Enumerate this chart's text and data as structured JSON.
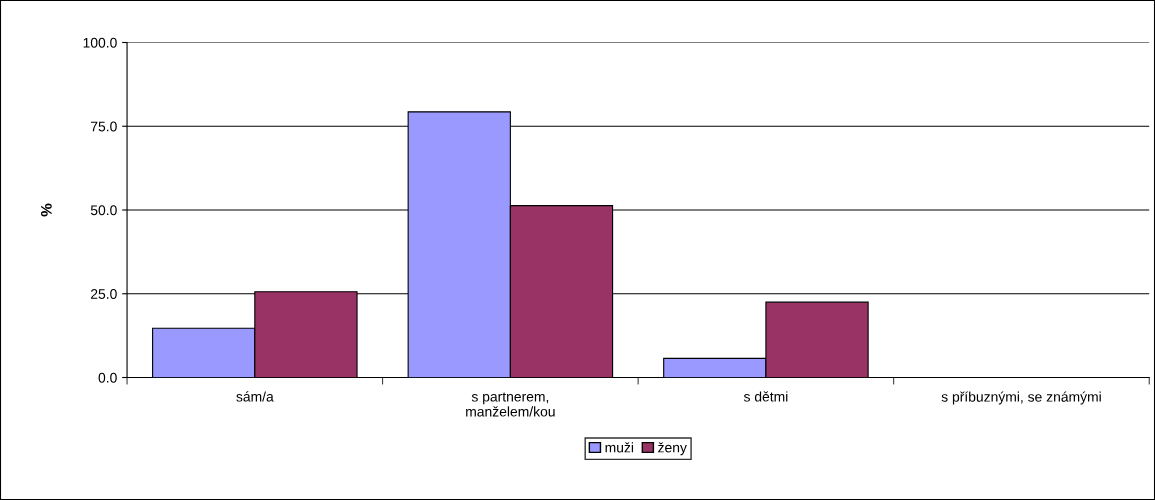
{
  "chart_data": {
    "type": "bar",
    "ylabel": "%",
    "categories": [
      "sám/a",
      "s partnerem,\nmanželem/kou",
      "s dětmi",
      "s příbuznými, se známými"
    ],
    "series": [
      {
        "name": "muži",
        "color": "#9999ff",
        "values": [
          14.7,
          79.3,
          5.7,
          null
        ]
      },
      {
        "name": "ženy",
        "color": "#993366",
        "values": [
          25.6,
          51.3,
          22.5,
          null
        ]
      }
    ],
    "ylim": [
      0,
      100
    ],
    "yticks": [
      {
        "value": 0,
        "label": "0.0"
      },
      {
        "value": 25,
        "label": "25.0"
      },
      {
        "value": 50,
        "label": "50.0"
      },
      {
        "value": 75,
        "label": "75.0"
      },
      {
        "value": 100,
        "label": "100.0"
      }
    ],
    "grid": "y",
    "legend": "bottom"
  }
}
